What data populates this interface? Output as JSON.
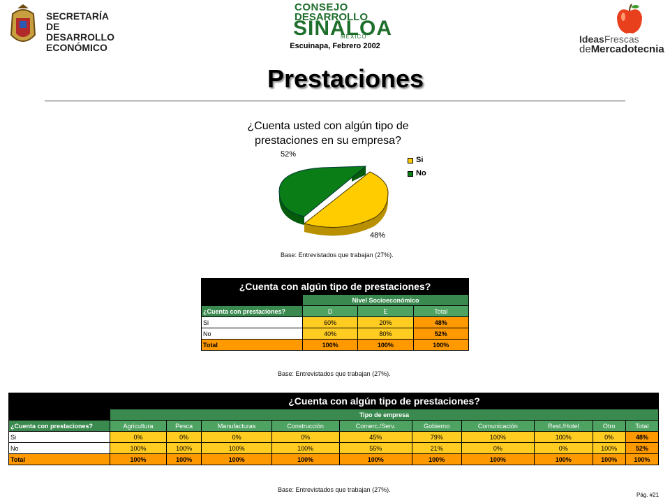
{
  "header": {
    "left_logo": {
      "line1": "SECRETARÍA",
      "line2": "DE DESARROLLO",
      "line3": "ECONÓMICO"
    },
    "center_logo": {
      "line1": "CONSEJO",
      "line2": "DESARROLLO",
      "line3": "SINALOA",
      "line4": "MÉXICO"
    },
    "subtitle": "Escuinapa, Febrero 2002",
    "right_logo": {
      "ideas": "Ideas",
      "frescas": "Frescas",
      "de": "de",
      "mercadotecnia": "Mercadotecnia"
    }
  },
  "title": "Prestaciones",
  "pie": {
    "title_line1": "¿Cuenta usted con algún tipo de",
    "title_line2": "prestaciones en su empresa?",
    "label_no": "52%",
    "label_si": "48%",
    "base": "Base:   Entrevistados que trabajan (27%)."
  },
  "chart_data": {
    "type": "pie",
    "title": "¿Cuenta usted con algún tipo de prestaciones en su empresa?",
    "categories": [
      "Si",
      "No"
    ],
    "values": [
      48,
      52
    ],
    "colors": [
      "#ffcc00",
      "#0a7d16"
    ],
    "legend_position": "right"
  },
  "table1": {
    "title": "¿Cuenta con algún tipo de prestaciones?",
    "group_header": "Nivel Socioeconómico",
    "row_header": "¿Cuenta con prestaciones?",
    "columns": [
      "D",
      "E",
      "Total"
    ],
    "rows": [
      {
        "label": "Si",
        "values": [
          "60%",
          "20%",
          "48%"
        ]
      },
      {
        "label": "No",
        "values": [
          "40%",
          "80%",
          "52%"
        ]
      },
      {
        "label": "Total",
        "values": [
          "100%",
          "100%",
          "100%"
        ]
      }
    ],
    "base": "Base:   Entrevistados que trabajan (27%)."
  },
  "table2": {
    "title": "¿Cuenta con algún tipo de prestaciones?",
    "group_header": "Tipo de empresa",
    "row_header": "¿Cuenta con prestaciones?",
    "columns": [
      "Agricultura",
      "Pesca",
      "Manufacturas",
      "Construcción",
      "Comerc./Serv.",
      "Gobierno",
      "Comunicación",
      "Rest./Hotel",
      "Otro",
      "Total"
    ],
    "rows": [
      {
        "label": "Si",
        "values": [
          "0%",
          "0%",
          "0%",
          "0%",
          "45%",
          "79%",
          "100%",
          "100%",
          "0%",
          "48%"
        ]
      },
      {
        "label": "No",
        "values": [
          "100%",
          "100%",
          "100%",
          "100%",
          "55%",
          "21%",
          "0%",
          "0%",
          "100%",
          "52%"
        ]
      },
      {
        "label": "Total",
        "values": [
          "100%",
          "100%",
          "100%",
          "100%",
          "100%",
          "100%",
          "100%",
          "100%",
          "100%",
          "100%"
        ]
      }
    ],
    "base": "Base:   Entrevistados que trabajan (27%)."
  },
  "page_number": "Pág. #21",
  "icons": [
    "seal-icon",
    "apple-icon"
  ]
}
